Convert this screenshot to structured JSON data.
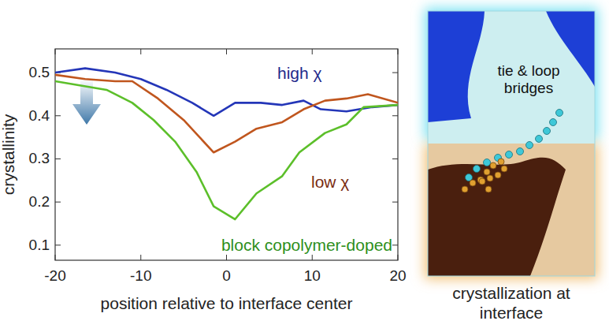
{
  "chart_data": {
    "type": "line",
    "xlabel": "position relative to interface center",
    "ylabel": "crystallinity",
    "xlim": [
      -20,
      20
    ],
    "xticks": [
      -20,
      -10,
      0,
      10,
      20
    ],
    "ylim": [
      0.065,
      0.555
    ],
    "yticks": [
      0.1,
      0.2,
      0.3,
      0.4,
      0.5
    ],
    "grid": false,
    "series": [
      {
        "name": "high χ",
        "color": "#2436b8",
        "x": [
          -20,
          -16.5,
          -13,
          -10,
          -7,
          -4,
          -1.5,
          1,
          4,
          6.5,
          9,
          11,
          14,
          17,
          20
        ],
        "values": [
          0.5,
          0.51,
          0.5,
          0.485,
          0.46,
          0.43,
          0.4,
          0.43,
          0.43,
          0.425,
          0.435,
          0.415,
          0.41,
          0.42,
          0.425
        ]
      },
      {
        "name": "low χ",
        "color": "#c0561e",
        "x": [
          -20,
          -16.5,
          -13,
          -11,
          -8,
          -5,
          -1.5,
          1,
          3.5,
          6.5,
          9,
          11.5,
          14,
          16.5,
          20
        ],
        "values": [
          0.495,
          0.485,
          0.48,
          0.48,
          0.44,
          0.39,
          0.315,
          0.34,
          0.37,
          0.385,
          0.415,
          0.435,
          0.44,
          0.45,
          0.43
        ]
      },
      {
        "name": "block copolymer-doped",
        "color": "#5cbf2a",
        "x": [
          -20,
          -17,
          -14,
          -11,
          -8.5,
          -6,
          -3.5,
          -1.5,
          1,
          3.5,
          6.5,
          8.5,
          11.5,
          14,
          16,
          20
        ],
        "values": [
          0.48,
          0.47,
          0.46,
          0.43,
          0.39,
          0.34,
          0.27,
          0.19,
          0.16,
          0.22,
          0.26,
          0.315,
          0.36,
          0.38,
          0.42,
          0.425
        ]
      }
    ]
  },
  "illustration": {
    "label": "tie & loop bridges",
    "caption": "crystallization at interface"
  }
}
